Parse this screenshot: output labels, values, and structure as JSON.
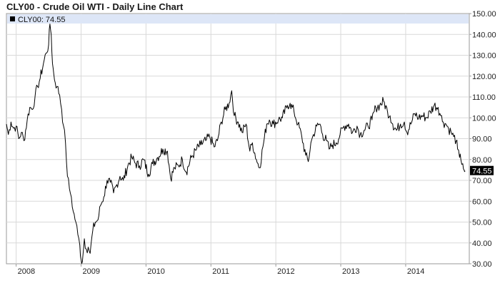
{
  "title": "CLY00 - Crude Oil WTI - Daily Line Chart",
  "legend": {
    "label": "CLY00: 74.55"
  },
  "last_value_label": "74.55",
  "chart_data": {
    "type": "line",
    "title": "CLY00 - Crude Oil WTI - Daily Line Chart",
    "xlabel": "",
    "ylabel": "",
    "x_ticks": [
      "2008",
      "2009",
      "2010",
      "2011",
      "2012",
      "2013",
      "2014"
    ],
    "y_ticks": [
      "30.00",
      "40.00",
      "50.00",
      "60.00",
      "70.00",
      "80.00",
      "90.00",
      "100.00",
      "110.00",
      "120.00",
      "130.00",
      "140.00",
      "150.00"
    ],
    "ylim": [
      30,
      150
    ],
    "xlim": [
      2007.85,
      2014.98
    ],
    "y_axis_side": "right",
    "grid": true,
    "legend_position": "top-left",
    "series": [
      {
        "values": [
          [
            2007.85,
            97
          ],
          [
            2007.88,
            92
          ],
          [
            2007.92,
            98
          ],
          [
            2007.96,
            95
          ],
          [
            2008.0,
            96
          ],
          [
            2008.04,
            90
          ],
          [
            2008.08,
            93
          ],
          [
            2008.12,
            89
          ],
          [
            2008.17,
            99
          ],
          [
            2008.21,
            105
          ],
          [
            2008.25,
            104
          ],
          [
            2008.29,
            110
          ],
          [
            2008.33,
            115
          ],
          [
            2008.37,
            119
          ],
          [
            2008.42,
            126
          ],
          [
            2008.46,
            131
          ],
          [
            2008.5,
            135
          ],
          [
            2008.52,
            145
          ],
          [
            2008.54,
            140
          ],
          [
            2008.56,
            126
          ],
          [
            2008.58,
            121
          ],
          [
            2008.6,
            117
          ],
          [
            2008.63,
            115
          ],
          [
            2008.67,
            111
          ],
          [
            2008.7,
            104
          ],
          [
            2008.73,
            96
          ],
          [
            2008.76,
            88
          ],
          [
            2008.79,
            72
          ],
          [
            2008.82,
            66
          ],
          [
            2008.85,
            62
          ],
          [
            2008.88,
            55
          ],
          [
            2008.92,
            50
          ],
          [
            2008.95,
            44
          ],
          [
            2008.98,
            39
          ],
          [
            2009.0,
            32
          ],
          [
            2009.02,
            31
          ],
          [
            2009.05,
            42
          ],
          [
            2009.08,
            37
          ],
          [
            2009.11,
            38
          ],
          [
            2009.14,
            35
          ],
          [
            2009.18,
            46
          ],
          [
            2009.22,
            50
          ],
          [
            2009.26,
            51
          ],
          [
            2009.3,
            58
          ],
          [
            2009.35,
            62
          ],
          [
            2009.4,
            70
          ],
          [
            2009.45,
            69
          ],
          [
            2009.5,
            64
          ],
          [
            2009.55,
            68
          ],
          [
            2009.6,
            72
          ],
          [
            2009.65,
            70
          ],
          [
            2009.72,
            77
          ],
          [
            2009.78,
            81
          ],
          [
            2009.84,
            78
          ],
          [
            2009.9,
            77
          ],
          [
            2009.96,
            80
          ],
          [
            2010.04,
            73
          ],
          [
            2010.1,
            78
          ],
          [
            2010.18,
            81
          ],
          [
            2010.26,
            85
          ],
          [
            2010.33,
            84
          ],
          [
            2010.38,
            71
          ],
          [
            2010.44,
            76
          ],
          [
            2010.5,
            77
          ],
          [
            2010.56,
            80
          ],
          [
            2010.62,
            74
          ],
          [
            2010.7,
            81
          ],
          [
            2010.78,
            85
          ],
          [
            2010.84,
            87
          ],
          [
            2010.92,
            89
          ],
          [
            2010.98,
            91
          ],
          [
            2011.05,
            86
          ],
          [
            2011.1,
            89
          ],
          [
            2011.16,
            98
          ],
          [
            2011.22,
            104
          ],
          [
            2011.28,
            107
          ],
          [
            2011.32,
            113
          ],
          [
            2011.36,
            101
          ],
          [
            2011.42,
            98
          ],
          [
            2011.48,
            93
          ],
          [
            2011.54,
            97
          ],
          [
            2011.6,
            84
          ],
          [
            2011.64,
            88
          ],
          [
            2011.7,
            80
          ],
          [
            2011.75,
            76
          ],
          [
            2011.8,
            86
          ],
          [
            2011.86,
            97
          ],
          [
            2011.9,
            99
          ],
          [
            2011.96,
            97
          ],
          [
            2012.04,
            99
          ],
          [
            2012.1,
            100
          ],
          [
            2012.18,
            106
          ],
          [
            2012.22,
            107
          ],
          [
            2012.28,
            103
          ],
          [
            2012.34,
            97
          ],
          [
            2012.4,
            91
          ],
          [
            2012.46,
            82
          ],
          [
            2012.5,
            79
          ],
          [
            2012.54,
            88
          ],
          [
            2012.58,
            92
          ],
          [
            2012.63,
            96
          ],
          [
            2012.68,
            97
          ],
          [
            2012.72,
            92
          ],
          [
            2012.78,
            89
          ],
          [
            2012.82,
            85
          ],
          [
            2012.87,
            87
          ],
          [
            2012.93,
            88
          ],
          [
            2012.99,
            92
          ],
          [
            2013.05,
            96
          ],
          [
            2013.12,
            97
          ],
          [
            2013.18,
            93
          ],
          [
            2013.25,
            96
          ],
          [
            2013.3,
            92
          ],
          [
            2013.36,
            94
          ],
          [
            2013.42,
            96
          ],
          [
            2013.48,
            99
          ],
          [
            2013.54,
            105
          ],
          [
            2013.6,
            106
          ],
          [
            2013.66,
            108
          ],
          [
            2013.72,
            103
          ],
          [
            2013.76,
            101
          ],
          [
            2013.8,
            97
          ],
          [
            2013.86,
            94
          ],
          [
            2013.92,
            97
          ],
          [
            2013.98,
            98
          ],
          [
            2014.02,
            93
          ],
          [
            2014.08,
            97
          ],
          [
            2014.14,
            102
          ],
          [
            2014.2,
            100
          ],
          [
            2014.26,
            101
          ],
          [
            2014.32,
            100
          ],
          [
            2014.38,
            103
          ],
          [
            2014.44,
            106
          ],
          [
            2014.5,
            105
          ],
          [
            2014.54,
            101
          ],
          [
            2014.58,
            98
          ],
          [
            2014.62,
            97
          ],
          [
            2014.66,
            95
          ],
          [
            2014.7,
            93
          ],
          [
            2014.74,
            91
          ],
          [
            2014.78,
            89
          ],
          [
            2014.8,
            85
          ],
          [
            2014.83,
            81
          ],
          [
            2014.85,
            80
          ],
          [
            2014.88,
            78
          ],
          [
            2014.9,
            75
          ],
          [
            2014.915,
            74.55
          ]
        ]
      }
    ],
    "last_value": 74.55,
    "line_color": "#000000",
    "last_value_box_color": "#000000"
  }
}
